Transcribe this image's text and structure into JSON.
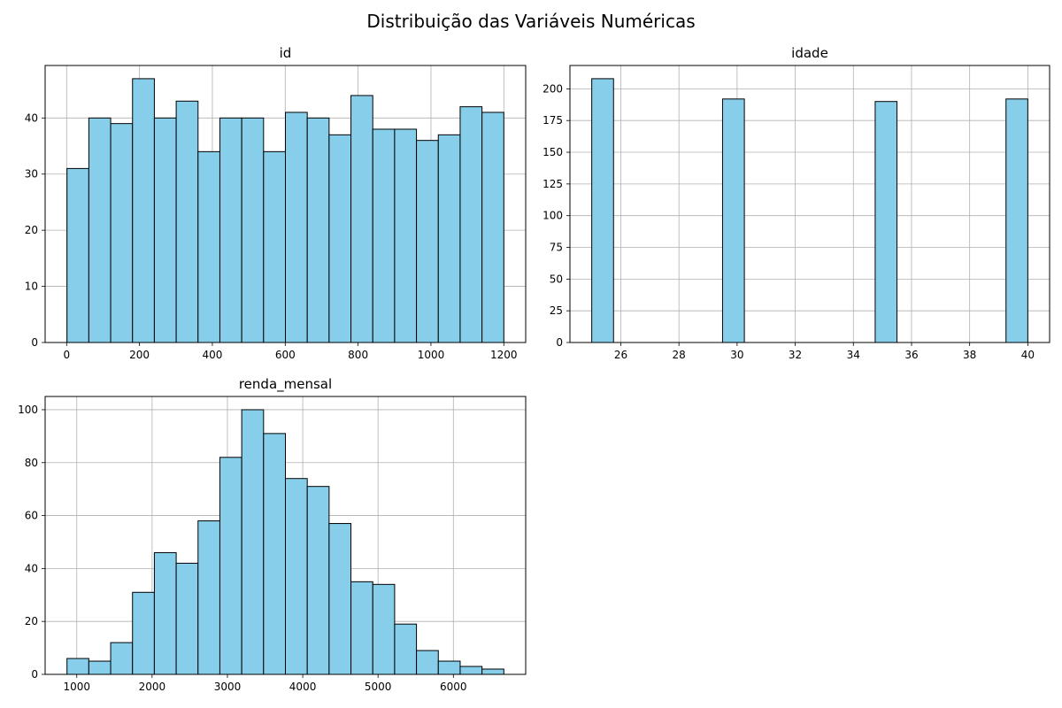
{
  "figure_title": "Distribuição das Variáveis Numéricas",
  "colors": {
    "bar_fill": "#87ceeb",
    "bar_edge": "#000000",
    "grid": "#b0b0b0"
  },
  "chart_data": [
    {
      "type": "bar",
      "title": "id",
      "bin_edges": [
        1,
        60.95,
        120.9,
        180.85,
        240.8,
        300.75,
        360.7,
        420.65,
        480.6,
        540.55,
        600.5,
        660.45,
        720.4,
        780.35,
        840.3,
        900.25,
        960.2,
        1020.15,
        1080.1,
        1140.05,
        1200
      ],
      "values": [
        31,
        40,
        39,
        47,
        40,
        43,
        34,
        40,
        40,
        34,
        41,
        40,
        37,
        44,
        38,
        38,
        36,
        37,
        42,
        41
      ],
      "xlim": [
        -59,
        1260
      ],
      "ylim": [
        0,
        49.35
      ],
      "xticks": [
        0,
        200,
        400,
        600,
        800,
        1000,
        1200
      ],
      "yticks": [
        0,
        10,
        20,
        30,
        40
      ],
      "grid": true
    },
    {
      "type": "bar",
      "title": "idade",
      "bin_edges": [
        25,
        25.75,
        26.5,
        27.25,
        28,
        28.75,
        29.5,
        30.25,
        31,
        31.75,
        32.5,
        33.25,
        34,
        34.75,
        35.5,
        36.25,
        37,
        37.75,
        38.5,
        39.25,
        40
      ],
      "values": [
        208,
        0,
        0,
        0,
        0,
        0,
        192,
        0,
        0,
        0,
        0,
        0,
        0,
        190,
        0,
        0,
        0,
        0,
        0,
        192
      ],
      "xlim": [
        24.25,
        40.75
      ],
      "ylim": [
        0,
        218.4
      ],
      "xticks": [
        26,
        28,
        30,
        32,
        34,
        36,
        38,
        40
      ],
      "yticks": [
        0,
        25,
        50,
        75,
        100,
        125,
        150,
        175,
        200
      ],
      "grid": true
    },
    {
      "type": "bar",
      "title": "renda_mensal",
      "bin_edges": [
        870,
        1160,
        1450,
        1740,
        2030,
        2320,
        2610,
        2900,
        3190,
        3480,
        3770,
        4060,
        4350,
        4640,
        4930,
        5220,
        5510,
        5800,
        6090,
        6380,
        6670
      ],
      "values": [
        6,
        5,
        12,
        31,
        46,
        42,
        58,
        82,
        100,
        91,
        74,
        71,
        57,
        35,
        34,
        19,
        9,
        5,
        3,
        2
      ],
      "xlim": [
        580,
        6960
      ],
      "ylim": [
        0,
        105
      ],
      "xticks": [
        1000,
        2000,
        3000,
        4000,
        5000,
        6000
      ],
      "yticks": [
        0,
        20,
        40,
        60,
        80,
        100
      ],
      "grid": true
    }
  ]
}
